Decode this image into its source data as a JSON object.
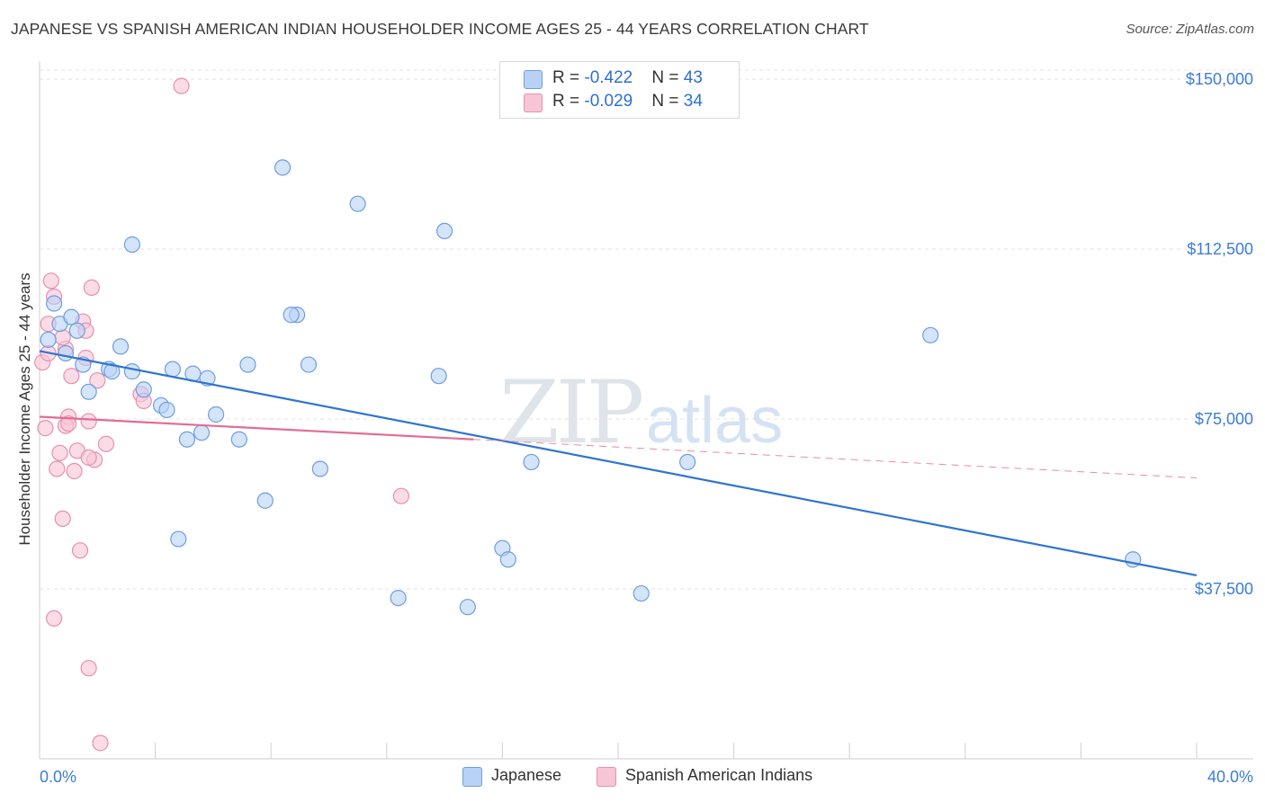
{
  "title": "JAPANESE VS SPANISH AMERICAN INDIAN HOUSEHOLDER INCOME AGES 25 - 44 YEARS CORRELATION CHART",
  "source": "Source: ZipAtlas.com",
  "watermark": {
    "zip": "ZIP",
    "atlas": "atlas"
  },
  "legend": {
    "rows": [
      {
        "r_label": "R = ",
        "r_value": "-0.422",
        "n_label": "N = ",
        "n_value": "43"
      },
      {
        "r_label": "R = ",
        "r_value": "-0.029",
        "n_label": "N = ",
        "n_value": "34"
      }
    ]
  },
  "colors": {
    "japanese_fill": "#b8d2f5",
    "japanese_stroke": "#6d9ee0",
    "japanese_line": "#2f74d0",
    "spanish_fill": "#f8c5d6",
    "spanish_stroke": "#e88fae",
    "spanish_line": "#e46b93",
    "axis_label": "#3b7dd8",
    "grid": "#e3e3e3"
  },
  "chart_data": {
    "type": "scatter",
    "title": "JAPANESE VS SPANISH AMERICAN INDIAN HOUSEHOLDER INCOME AGES 25 - 44 YEARS CORRELATION CHART",
    "xlabel": "",
    "ylabel": "Householder Income Ages 25 - 44 years",
    "xlim": [
      0,
      40
    ],
    "ylim": [
      0,
      152000
    ],
    "x_tick_labels": [
      "0.0%",
      "40.0%"
    ],
    "y_ticks": [
      37500,
      75000,
      112500,
      150000
    ],
    "y_tick_labels": [
      "$37,500",
      "$75,000",
      "$112,500",
      "$150,000"
    ],
    "grid": true,
    "legend_position": "top-center",
    "series": [
      {
        "name": "Japanese",
        "r": -0.422,
        "n": 43,
        "trend": {
          "x0": 0,
          "y0": 90000,
          "x1": 40,
          "y1": 40500,
          "dashed_from": null
        },
        "points": [
          [
            0.3,
            92500
          ],
          [
            0.5,
            100500
          ],
          [
            0.7,
            96000
          ],
          [
            0.9,
            89500
          ],
          [
            1.1,
            97500
          ],
          [
            1.3,
            94500
          ],
          [
            1.5,
            87000
          ],
          [
            1.7,
            81000
          ],
          [
            2.4,
            86000
          ],
          [
            2.8,
            91000
          ],
          [
            2.5,
            85500
          ],
          [
            3.2,
            85500
          ],
          [
            3.6,
            81500
          ],
          [
            4.2,
            78000
          ],
          [
            4.4,
            77000
          ],
          [
            4.6,
            86000
          ],
          [
            5.3,
            85000
          ],
          [
            5.8,
            84000
          ],
          [
            5.1,
            70500
          ],
          [
            5.6,
            72000
          ],
          [
            6.1,
            76000
          ],
          [
            6.9,
            70500
          ],
          [
            7.2,
            87000
          ],
          [
            7.8,
            57000
          ],
          [
            8.4,
            130500
          ],
          [
            8.9,
            98000
          ],
          [
            9.3,
            87000
          ],
          [
            9.7,
            64000
          ],
          [
            11.0,
            122500
          ],
          [
            13.8,
            84500
          ],
          [
            14.0,
            116500
          ],
          [
            16.0,
            46500
          ],
          [
            16.2,
            44000
          ],
          [
            17.0,
            65500
          ],
          [
            12.4,
            35500
          ],
          [
            14.8,
            33500
          ],
          [
            20.8,
            36500
          ],
          [
            22.4,
            65500
          ],
          [
            30.8,
            93500
          ],
          [
            37.8,
            44000
          ],
          [
            3.2,
            113500
          ],
          [
            4.8,
            48500
          ],
          [
            8.7,
            98000
          ]
        ]
      },
      {
        "name": "Spanish American Indians",
        "r": -0.029,
        "n": 34,
        "trend": {
          "x0": 0,
          "y0": 75500,
          "x1": 15,
          "y1": 70500,
          "x2": 40,
          "y2": 62000
        },
        "points": [
          [
            0.1,
            87500
          ],
          [
            0.2,
            73000
          ],
          [
            0.3,
            96000
          ],
          [
            0.4,
            105500
          ],
          [
            0.5,
            102000
          ],
          [
            0.6,
            64000
          ],
          [
            0.7,
            67500
          ],
          [
            0.8,
            53000
          ],
          [
            0.9,
            90500
          ],
          [
            1.0,
            75500
          ],
          [
            1.1,
            84500
          ],
          [
            1.2,
            63500
          ],
          [
            1.3,
            68000
          ],
          [
            1.4,
            46000
          ],
          [
            1.5,
            96500
          ],
          [
            1.6,
            88500
          ],
          [
            1.7,
            74500
          ],
          [
            1.8,
            104000
          ],
          [
            1.9,
            66000
          ],
          [
            2.0,
            83500
          ],
          [
            2.3,
            69500
          ],
          [
            1.7,
            20000
          ],
          [
            2.1,
            3500
          ],
          [
            3.5,
            80500
          ],
          [
            3.6,
            79000
          ],
          [
            0.5,
            31000
          ],
          [
            12.5,
            58000
          ],
          [
            4.9,
            148500
          ],
          [
            1.7,
            66500
          ],
          [
            0.9,
            73500
          ],
          [
            1.0,
            74000
          ],
          [
            0.3,
            89500
          ],
          [
            1.6,
            94500
          ],
          [
            0.8,
            93000
          ]
        ]
      }
    ]
  },
  "bottom_legend": [
    {
      "label": "Japanese"
    },
    {
      "label": "Spanish American Indians"
    }
  ]
}
